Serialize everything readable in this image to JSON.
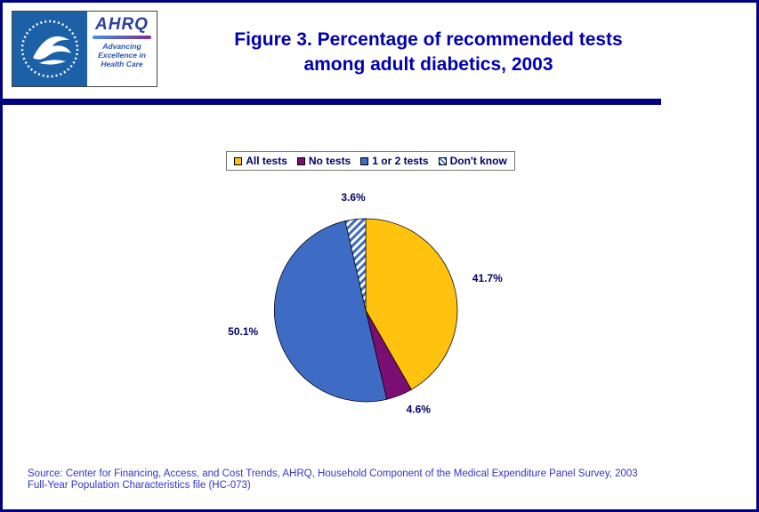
{
  "header": {
    "title_line1": "Figure 3. Percentage of recommended tests",
    "title_line2": "among adult diabetics, 2003",
    "logo": {
      "ahrq_text": "AHRQ",
      "tagline_line1": "Advancing",
      "tagline_line2": "Excellence in",
      "tagline_line3": "Health Care"
    }
  },
  "chart_data": {
    "type": "pie",
    "title": "Figure 3. Percentage of recommended tests among adult diabetics, 2003",
    "slices": [
      {
        "label": "All tests",
        "value": 41.7,
        "color": "#FFC20E",
        "pattern": "solid"
      },
      {
        "label": "No tests",
        "value": 4.6,
        "color": "#7B0E72",
        "pattern": "solid"
      },
      {
        "label": "1 or 2 tests",
        "value": 50.1,
        "color": "#3E6CC5",
        "pattern": "solid"
      },
      {
        "label": "Don't know",
        "value": 3.6,
        "color": "#3E6CC5",
        "pattern": "hatch"
      }
    ],
    "start_angle_deg": 0,
    "direction": "clockwise",
    "value_suffix": "%",
    "legend_position": "top",
    "data_labels": [
      "41.7%",
      "4.6%",
      "50.1%",
      "3.6%"
    ]
  },
  "footer": {
    "source_line1": "Source: Center for Financing, Access, and Cost Trends, AHRQ, Household Component of the Medical Expenditure Panel Survey, 2003",
    "source_line2": "Full-Year Population Characteristics file (HC-073)"
  },
  "colors": {
    "border_navy": "#000080",
    "title_blue": "#0000B0",
    "label_navy": "#000066",
    "source_blue": "#3333CC"
  }
}
